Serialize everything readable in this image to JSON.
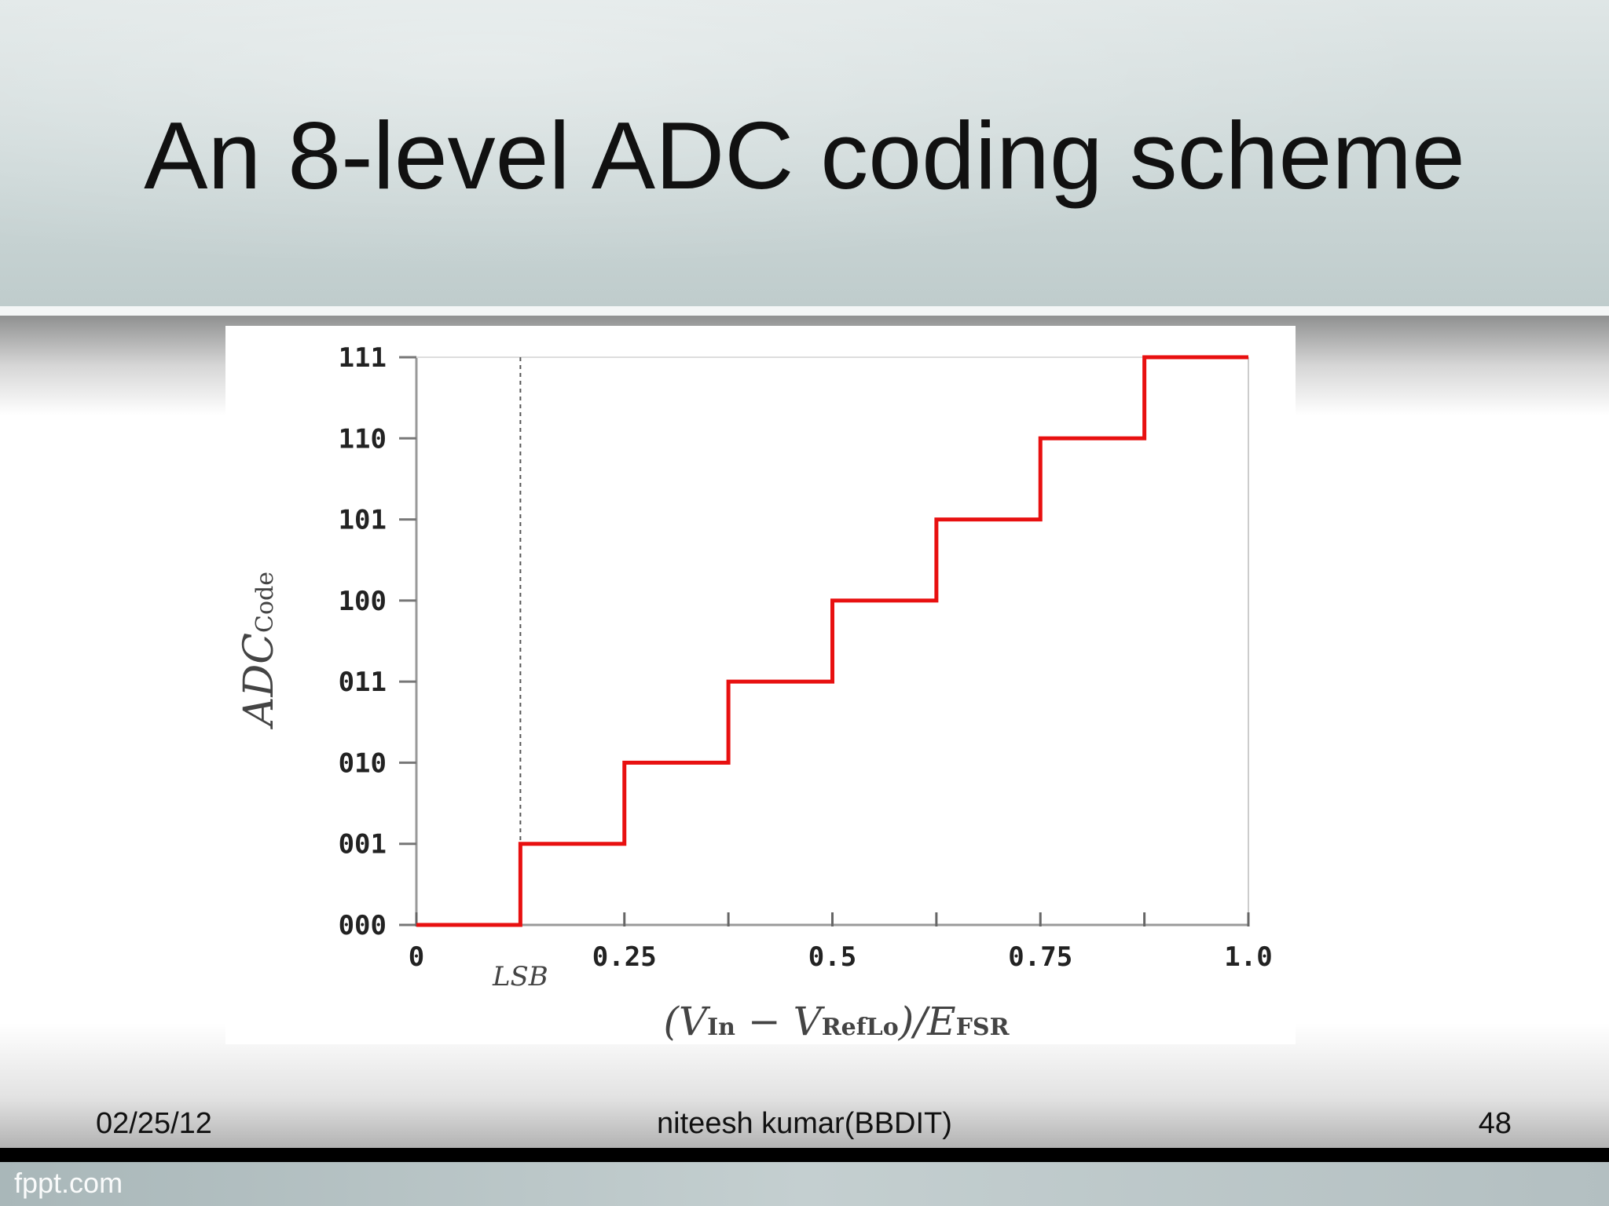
{
  "slide": {
    "title": "An 8-level ADC coding scheme",
    "footer": {
      "date": "02/25/12",
      "author": "niteesh kumar(BBDIT)",
      "page": "48"
    },
    "watermark": "fppt.com"
  },
  "chart_data": {
    "type": "line",
    "step": "post",
    "title": "",
    "xlabel": "(V_In − V_RefLo)/E_FSR",
    "ylabel": "ADC_Code",
    "xlim": [
      0,
      1.0
    ],
    "ylim": [
      0,
      7
    ],
    "x_ticks": [
      0,
      0.125,
      0.25,
      0.375,
      0.5,
      0.625,
      0.75,
      0.875,
      1.0
    ],
    "x_tick_labels": [
      {
        "x": 0,
        "label": "0"
      },
      {
        "x": 0.25,
        "label": "0.25"
      },
      {
        "x": 0.5,
        "label": "0.5"
      },
      {
        "x": 0.75,
        "label": "0.75"
      },
      {
        "x": 1.0,
        "label": "1.0"
      }
    ],
    "y_tick_labels": [
      "000",
      "001",
      "010",
      "011",
      "100",
      "101",
      "110",
      "111"
    ],
    "annotations": [
      {
        "x": 0.125,
        "label": "LSB",
        "style": "dashed vertical line"
      }
    ],
    "series": [
      {
        "color": "#e81010",
        "x": [
          0,
          0.125,
          0.25,
          0.375,
          0.5,
          0.625,
          0.75,
          0.875
        ],
        "y": [
          0,
          1,
          2,
          3,
          4,
          5,
          6,
          7
        ],
        "x_end": 1.0
      }
    ],
    "grid": false
  }
}
